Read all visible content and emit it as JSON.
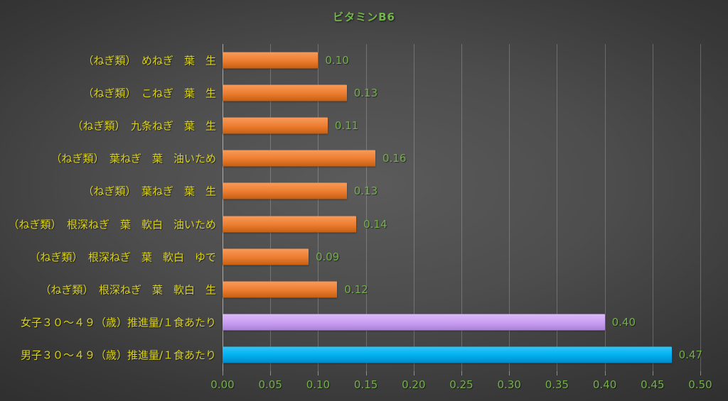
{
  "title": "ビタミンB6",
  "colors": {
    "title_green": "#72B64B",
    "value_green": "#74B04A",
    "axis_text_green": "#74B04A",
    "label_yellow": "#DBD31D",
    "gridline": "rgba(255,255,255,0.22)",
    "axis_line": "rgba(255,255,255,0.52)",
    "tick_mark": "rgba(255,255,255,0.42)",
    "background_center": "#5B5B5B",
    "background_edge": "#262626",
    "bar_palette": {
      "orange": {
        "light": "#F89B59",
        "base": "#ED7D31",
        "dark": "#C55F11"
      },
      "purple": {
        "light": "#DDB9FA",
        "base": "#C99EF2",
        "dark": "#AA80D8"
      },
      "cyan": {
        "light": "#33C5F5",
        "base": "#00B0F0",
        "dark": "#008BC7"
      }
    }
  },
  "chart_data": {
    "type": "bar",
    "orientation": "horizontal",
    "title": "ビタミンB6",
    "categories": [
      "（ねぎ類）　めねぎ　葉　生",
      "（ねぎ類）　こねぎ　葉　生",
      "（ねぎ類）　九条ねぎ　葉　生",
      "（ねぎ類）　葉ねぎ　葉　油いため",
      "（ねぎ類）　葉ねぎ　葉　生",
      "（ねぎ類）　根深ねぎ　葉　軟白　油いため",
      "（ねぎ類）　根深ねぎ　葉　軟白　ゆで",
      "（ねぎ類）　根深ねぎ　葉　軟白　生",
      "女子３０～４９（歳）推進量/１食あたり",
      "男子３０～４９（歳）推進量/１食あたり"
    ],
    "values": [
      0.1,
      0.13,
      0.11,
      0.16,
      0.13,
      0.14,
      0.09,
      0.12,
      0.4,
      0.47
    ],
    "value_labels": [
      "0.10",
      "0.13",
      "0.11",
      "0.16",
      "0.13",
      "0.14",
      "0.09",
      "0.12",
      "0.40",
      "0.47"
    ],
    "bar_colors": [
      "orange",
      "orange",
      "orange",
      "orange",
      "orange",
      "orange",
      "orange",
      "orange",
      "purple",
      "cyan"
    ],
    "xlabel": "",
    "ylabel": "",
    "xlim": [
      0,
      0.5
    ],
    "x_ticks": [
      "0.00",
      "0.05",
      "0.10",
      "0.15",
      "0.20",
      "0.25",
      "0.30",
      "0.35",
      "0.40",
      "0.45",
      "0.50"
    ],
    "grid": true,
    "legend": "none"
  }
}
